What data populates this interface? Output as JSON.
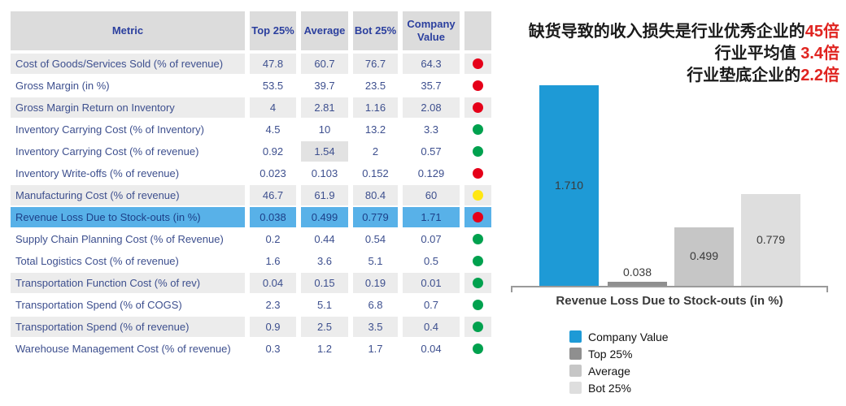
{
  "table": {
    "columns": [
      "Metric",
      "Top 25%",
      "Average",
      "Bot 25%",
      "Company Value"
    ],
    "rows": [
      {
        "metric": "Cost of Goods/Services Sold (% of revenue)",
        "top25": "47.8",
        "average": "60.7",
        "bot25": "76.7",
        "company": "64.3",
        "status": "red",
        "shaded": true,
        "highlighted": false
      },
      {
        "metric": "Gross Margin (in %)",
        "top25": "53.5",
        "average": "39.7",
        "bot25": "23.5",
        "company": "35.7",
        "status": "red",
        "shaded": false,
        "highlighted": false
      },
      {
        "metric": "Gross Margin Return on Inventory",
        "top25": "4",
        "average": "2.81",
        "bot25": "1.16",
        "company": "2.08",
        "status": "red",
        "shaded": true,
        "highlighted": false
      },
      {
        "metric": "Inventory Carrying Cost (% of Inventory)",
        "top25": "4.5",
        "average": "10",
        "bot25": "13.2",
        "company": "3.3",
        "status": "green",
        "shaded": false,
        "highlighted": false
      },
      {
        "metric": "Inventory Carrying Cost (% of revenue)",
        "top25": "0.92",
        "average": "1.54",
        "bot25": "2",
        "company": "0.57",
        "status": "green",
        "shaded": false,
        "highlighted": false,
        "cell_shade": "average"
      },
      {
        "metric": "Inventory Write-offs (% of revenue)",
        "top25": "0.023",
        "average": "0.103",
        "bot25": "0.152",
        "company": "0.129",
        "status": "red",
        "shaded": false,
        "highlighted": false
      },
      {
        "metric": "Manufacturing Cost (% of revenue)",
        "top25": "46.7",
        "average": "61.9",
        "bot25": "80.4",
        "company": "60",
        "status": "yellow",
        "shaded": true,
        "highlighted": false
      },
      {
        "metric": "Revenue Loss Due to Stock-outs (in %)",
        "top25": "0.038",
        "average": "0.499",
        "bot25": "0.779",
        "company": "1.71",
        "status": "red",
        "shaded": false,
        "highlighted": true
      },
      {
        "metric": "Supply Chain Planning Cost (% of Revenue)",
        "top25": "0.2",
        "average": "0.44",
        "bot25": "0.54",
        "company": "0.07",
        "status": "green",
        "shaded": false,
        "highlighted": false
      },
      {
        "metric": "Total Logistics Cost (% of revenue)",
        "top25": "1.6",
        "average": "3.6",
        "bot25": "5.1",
        "company": "0.5",
        "status": "green",
        "shaded": false,
        "highlighted": false
      },
      {
        "metric": "Transportation Function Cost (% of rev)",
        "top25": "0.04",
        "average": "0.15",
        "bot25": "0.19",
        "company": "0.01",
        "status": "green",
        "shaded": true,
        "highlighted": false
      },
      {
        "metric": "Transportation Spend (% of COGS)",
        "top25": "2.3",
        "average": "5.1",
        "bot25": "6.8",
        "company": "0.7",
        "status": "green",
        "shaded": false,
        "highlighted": false
      },
      {
        "metric": "Transportation Spend (% of revenue)",
        "top25": "0.9",
        "average": "2.5",
        "bot25": "3.5",
        "company": "0.4",
        "status": "green",
        "shaded": true,
        "highlighted": false
      },
      {
        "metric": "Warehouse Management Cost (% of revenue)",
        "top25": "0.3",
        "average": "1.2",
        "bot25": "1.7",
        "company": "0.04",
        "status": "green",
        "shaded": false,
        "highlighted": false
      }
    ]
  },
  "annotation": {
    "lines": [
      {
        "text": "缺货导致的收入损失是行业优秀企业的",
        "em": "45倍"
      },
      {
        "text": "行业平均值 ",
        "em": "3.4倍"
      },
      {
        "text": "行业垫底企业的",
        "em": "2.2倍"
      }
    ]
  },
  "chart_data": {
    "type": "bar",
    "title": "",
    "xlabel": "Revenue Loss Due to Stock-outs (in %)",
    "ylabel": "",
    "ylim": [
      0,
      1.8
    ],
    "grid": false,
    "legend_position": "bottom-left",
    "categories": [
      "Company Value",
      "Top 25%",
      "Average",
      "Bot 25%"
    ],
    "series": [
      {
        "name": "Company Value",
        "value": 1.71,
        "label": "1.710",
        "color": "#1e9ad6"
      },
      {
        "name": "Top 25%",
        "value": 0.038,
        "label": "0.038",
        "color": "#8f8f8f"
      },
      {
        "name": "Average",
        "value": 0.499,
        "label": "0.499",
        "color": "#c6c6c6"
      },
      {
        "name": "Bot 25%",
        "value": 0.779,
        "label": "0.779",
        "color": "#dedede"
      }
    ]
  },
  "colors": {
    "accent_blue": "#1e9ad6",
    "row_highlight": "#58b1e8",
    "header_bg": "#dcdcdc",
    "header_text": "#2b3f9e",
    "body_text": "#3d4f8e",
    "status_red": "#e50019",
    "status_green": "#00a14e",
    "status_yellow": "#ffe712",
    "annotation_red": "#e02420"
  }
}
